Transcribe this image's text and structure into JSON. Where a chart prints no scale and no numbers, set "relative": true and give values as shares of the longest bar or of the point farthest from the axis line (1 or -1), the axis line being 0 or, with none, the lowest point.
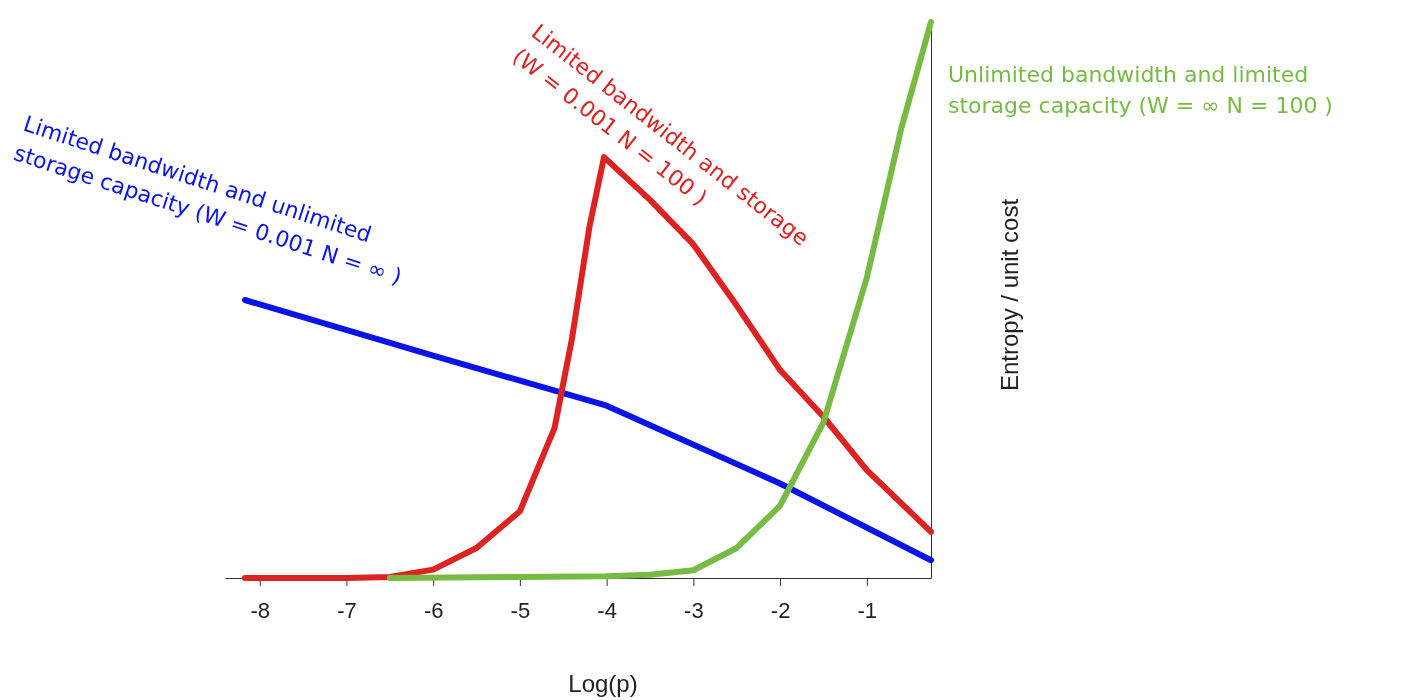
{
  "chart_data": {
    "type": "line",
    "relative": true,
    "xlabel": "Log(p)",
    "ylabel": "Entropy / unit cost",
    "xlim": [
      -8.4,
      -0.26
    ],
    "xticks": [
      -8,
      -7,
      -6,
      -5,
      -4,
      -3,
      -2,
      -1
    ],
    "grid": false,
    "marker": "none",
    "line_style": "solid",
    "series": [
      {
        "name": "Limited bandwidth and unlimited\nstorage capacity (W = 0.001 N = ∞ )",
        "color": "#0a14e6",
        "x": [
          -8.17,
          -6,
          -4,
          -2,
          -0.26
        ],
        "values": [
          0.5,
          0.4,
          0.31,
          0.17,
          0.032
        ]
      },
      {
        "name": "Limited bandwidth and storage\n(W = 0.001 N = 100 )",
        "color": "#dd2222",
        "x": [
          -8.17,
          -7,
          -6.5,
          -6,
          -5.5,
          -5,
          -4.6,
          -4.4,
          -4.2,
          -4.03,
          -3.5,
          -3,
          -2.5,
          -2,
          -1.5,
          -1,
          -0.26
        ],
        "values": [
          0,
          0,
          0.002,
          0.015,
          0.054,
          0.12,
          0.27,
          0.43,
          0.63,
          0.757,
          0.68,
          0.6,
          0.49,
          0.374,
          0.29,
          0.194,
          0.083
        ]
      },
      {
        "name": "Unlimited bandwidth and limited\nstorage capacity (W = ∞ N = 100 )",
        "color": "#77bb44",
        "x": [
          -6.5,
          -5,
          -4,
          -3.5,
          -3,
          -2.5,
          -2,
          -1.5,
          -1,
          -0.6,
          -0.26
        ],
        "values": [
          0,
          0.002,
          0.003,
          0.006,
          0.014,
          0.054,
          0.13,
          0.28,
          0.54,
          0.81,
          1
        ]
      }
    ]
  }
}
